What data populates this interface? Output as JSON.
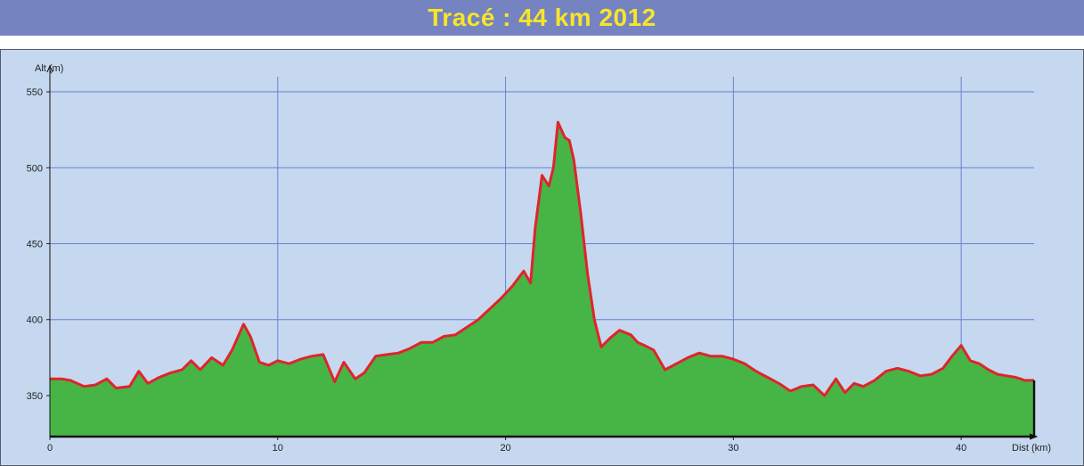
{
  "banner": {
    "title": "Tracé : 44 km 2012"
  },
  "colors": {
    "banner_bg": "#7583c0",
    "banner_text": "#f7e52a",
    "plot_bg": "#c5d8ef",
    "grid": "#6c7fd4",
    "fill": "#46b546",
    "line": "#e0242c"
  },
  "chart_data": {
    "type": "area",
    "xlabel": "Dist (km)",
    "ylabel": "Alt (m)",
    "xlim": [
      0,
      43.2
    ],
    "ylim": [
      323,
      560
    ],
    "x_ticks": [
      0,
      10,
      20,
      30,
      40
    ],
    "y_ticks": [
      350,
      400,
      450,
      500,
      550
    ],
    "grid": true,
    "series": [
      {
        "x": [
          0,
          0.5,
          0.9,
          1.5,
          2.0,
          2.5,
          2.9,
          3.5,
          3.9,
          4.3,
          4.8,
          5.3,
          5.8,
          6.2,
          6.6,
          7.1,
          7.6,
          8.0,
          8.5,
          8.8,
          9.2,
          9.6,
          10.0,
          10.5,
          11.0,
          11.5,
          12.0,
          12.5,
          12.9,
          13.4,
          13.8,
          14.3,
          14.8,
          15.3,
          15.8,
          16.3,
          16.8,
          17.3,
          17.8,
          18.3,
          18.8,
          19.3,
          19.8,
          20.3,
          20.8,
          21.1,
          21.3,
          21.6,
          21.9,
          22.1,
          22.3,
          22.6,
          22.8,
          23.0,
          23.3,
          23.6,
          23.9,
          24.2,
          24.6,
          25.0,
          25.5,
          25.8,
          26.1,
          26.5,
          27.0,
          27.5,
          28.0,
          28.5,
          29.0,
          29.5,
          30.0,
          30.5,
          31.0,
          31.5,
          32.0,
          32.5,
          33.0,
          33.5,
          34.0,
          34.5,
          34.9,
          35.3,
          35.7,
          36.2,
          36.7,
          37.2,
          37.7,
          38.2,
          38.7,
          39.2,
          39.6,
          40.0,
          40.4,
          40.8,
          41.2,
          41.6,
          42.0,
          42.4,
          42.8,
          43.2
        ],
        "y": [
          361,
          361,
          360,
          356,
          357,
          361,
          355,
          356,
          366,
          358,
          362,
          365,
          367,
          373,
          367,
          375,
          370,
          380,
          397,
          389,
          372,
          370,
          373,
          371,
          374,
          376,
          377,
          359,
          372,
          361,
          365,
          376,
          377,
          378,
          381,
          385,
          385,
          389,
          390,
          395,
          400,
          407,
          414,
          422,
          432,
          424,
          460,
          495,
          488,
          500,
          530,
          520,
          518,
          505,
          470,
          430,
          400,
          382,
          388,
          393,
          390,
          385,
          383,
          380,
          367,
          371,
          375,
          378,
          376,
          376,
          374,
          371,
          366,
          362,
          358,
          353,
          356,
          357,
          350,
          361,
          352,
          358,
          356,
          360,
          366,
          368,
          366,
          363,
          364,
          368,
          376,
          383,
          373,
          371,
          367,
          364,
          363,
          362,
          360,
          360
        ]
      }
    ]
  }
}
